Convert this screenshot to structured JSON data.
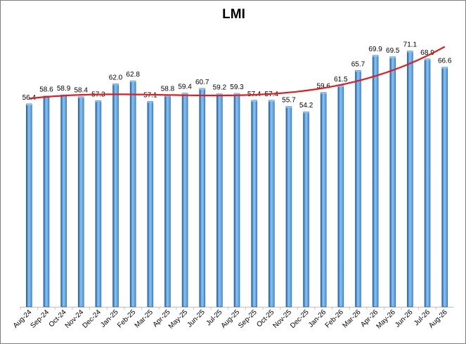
{
  "chart_data": {
    "type": "bar",
    "title": "LMI",
    "xlabel": "",
    "ylabel": "",
    "categories": [
      "Aug-24",
      "Sep-24",
      "Oct-24",
      "Nov-24",
      "Dec-24",
      "Jan-25",
      "Feb-25",
      "Mar-25",
      "Apr-25",
      "May-25",
      "Jun-25",
      "Jul-25",
      "Aug-25",
      "Sep-25",
      "Oct-25",
      "Nov-25",
      "Dec-25",
      "Jan-26",
      "Feb-26",
      "Mar-26",
      "Apr-26",
      "May-26",
      "Jun-26",
      "Jul-26",
      "Aug-26"
    ],
    "values": [
      56.4,
      58.6,
      58.9,
      58.4,
      57.3,
      62.0,
      62.8,
      57.1,
      58.8,
      59.4,
      60.7,
      59.2,
      59.3,
      57.4,
      57.4,
      55.7,
      54.2,
      59.6,
      61.5,
      65.7,
      69.9,
      69.5,
      71.1,
      68.9,
      66.6
    ],
    "value_labels": [
      "56.4",
      "58.6",
      "58.9",
      "58.4",
      "57.3",
      "62.0",
      "62.8",
      "57.1",
      "58.8",
      "59.4",
      "60.7",
      "59.2",
      "59.3",
      "57.4",
      "57.4",
      "55.7",
      "54.2",
      "59.6",
      "61.5",
      "65.7",
      "69.9",
      "69.5",
      "71.1",
      "68.9",
      "66.6"
    ],
    "trendline": {
      "type": "polynomial",
      "color": "#e41a1c"
    },
    "ylim": [
      0,
      80
    ],
    "grid": false,
    "legend": "none",
    "colors": {
      "bar": "#4a90d9",
      "bar_dark": "#1f5fa0",
      "bar_light": "#8cc4f2",
      "trend": "#e41a1c"
    }
  }
}
